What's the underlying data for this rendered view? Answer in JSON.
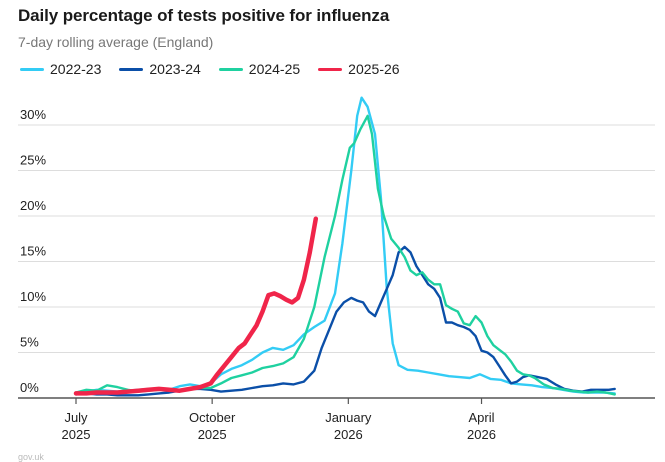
{
  "chart_data": {
    "type": "line",
    "title": "Daily percentage of tests positive for influenza",
    "subtitle": "7-day rolling average (England)",
    "xlabel": "",
    "ylabel": "",
    "x_unit": "days since 1 July",
    "x_ticks": [
      {
        "day": 0,
        "label1": "July",
        "label2": "2025"
      },
      {
        "day": 92,
        "label1": "October",
        "label2": "2025"
      },
      {
        "day": 184,
        "label1": "January",
        "label2": "2026"
      },
      {
        "day": 274,
        "label1": "April",
        "label2": "2026"
      }
    ],
    "xlim": [
      -40,
      391
    ],
    "ylim": [
      0,
      35
    ],
    "y_ticks": [
      {
        "value": 0,
        "label": "0%"
      },
      {
        "value": 5,
        "label": "5%"
      },
      {
        "value": 10,
        "label": "10%"
      },
      {
        "value": 15,
        "label": "15%"
      },
      {
        "value": 20,
        "label": "20%"
      },
      {
        "value": 25,
        "label": "25%"
      },
      {
        "value": 30,
        "label": "30%"
      }
    ],
    "grid": true,
    "legend_position": "top-left",
    "series": [
      {
        "name": "2022-23",
        "color": "#33ccf5",
        "points": [
          [
            0,
            0.5
          ],
          [
            7,
            0.7
          ],
          [
            14,
            0.9
          ],
          [
            21,
            0.8
          ],
          [
            28,
            0.7
          ],
          [
            35,
            0.8
          ],
          [
            42,
            0.9
          ],
          [
            49,
            1.0
          ],
          [
            56,
            1.0
          ],
          [
            63,
            0.9
          ],
          [
            70,
            1.3
          ],
          [
            77,
            1.5
          ],
          [
            84,
            1.3
          ],
          [
            91,
            1.6
          ],
          [
            98,
            2.6
          ],
          [
            105,
            3.2
          ],
          [
            112,
            3.6
          ],
          [
            119,
            4.2
          ],
          [
            126,
            5.0
          ],
          [
            133,
            5.5
          ],
          [
            140,
            5.3
          ],
          [
            147,
            5.8
          ],
          [
            154,
            7.0
          ],
          [
            161,
            7.8
          ],
          [
            168,
            8.5
          ],
          [
            175,
            11.5
          ],
          [
            180,
            17
          ],
          [
            186,
            25
          ],
          [
            190,
            31
          ],
          [
            193,
            33
          ],
          [
            197,
            32
          ],
          [
            202,
            29
          ],
          [
            206,
            22
          ],
          [
            210,
            12
          ],
          [
            214,
            6
          ],
          [
            218,
            3.6
          ],
          [
            224,
            3.1
          ],
          [
            231,
            3.0
          ],
          [
            238,
            2.8
          ],
          [
            245,
            2.6
          ],
          [
            252,
            2.4
          ],
          [
            259,
            2.3
          ],
          [
            266,
            2.2
          ],
          [
            273,
            2.6
          ],
          [
            280,
            2.1
          ],
          [
            287,
            2.0
          ],
          [
            294,
            1.6
          ],
          [
            301,
            1.5
          ],
          [
            308,
            1.4
          ],
          [
            315,
            1.2
          ],
          [
            322,
            1.1
          ],
          [
            329,
            0.9
          ],
          [
            336,
            0.7
          ],
          [
            343,
            0.6
          ],
          [
            350,
            0.6
          ],
          [
            357,
            0.6
          ],
          [
            364,
            0.5
          ]
        ]
      },
      {
        "name": "2023-24",
        "color": "#0b4fa8",
        "points": [
          [
            0,
            0.4
          ],
          [
            7,
            0.5
          ],
          [
            14,
            0.4
          ],
          [
            21,
            0.4
          ],
          [
            28,
            0.3
          ],
          [
            35,
            0.3
          ],
          [
            42,
            0.3
          ],
          [
            49,
            0.4
          ],
          [
            56,
            0.5
          ],
          [
            63,
            0.6
          ],
          [
            70,
            0.8
          ],
          [
            77,
            1.0
          ],
          [
            84,
            1.0
          ],
          [
            91,
            0.9
          ],
          [
            98,
            0.7
          ],
          [
            105,
            0.8
          ],
          [
            112,
            0.9
          ],
          [
            119,
            1.1
          ],
          [
            126,
            1.3
          ],
          [
            133,
            1.4
          ],
          [
            140,
            1.6
          ],
          [
            147,
            1.5
          ],
          [
            154,
            1.8
          ],
          [
            161,
            3.0
          ],
          [
            166,
            5.5
          ],
          [
            171,
            7.5
          ],
          [
            176,
            9.5
          ],
          [
            181,
            10.5
          ],
          [
            186,
            11.0
          ],
          [
            190,
            10.7
          ],
          [
            194,
            10.5
          ],
          [
            198,
            9.5
          ],
          [
            202,
            9.0
          ],
          [
            206,
            10.5
          ],
          [
            210,
            12
          ],
          [
            214,
            13.5
          ],
          [
            218,
            16.0
          ],
          [
            222,
            16.6
          ],
          [
            226,
            16.0
          ],
          [
            230,
            14.5
          ],
          [
            234,
            13.5
          ],
          [
            238,
            12.5
          ],
          [
            242,
            12.0
          ],
          [
            246,
            11.0
          ],
          [
            250,
            8.3
          ],
          [
            254,
            8.3
          ],
          [
            258,
            8.0
          ],
          [
            262,
            7.8
          ],
          [
            266,
            7.5
          ],
          [
            270,
            6.8
          ],
          [
            274,
            5.2
          ],
          [
            278,
            5.0
          ],
          [
            282,
            4.5
          ],
          [
            286,
            3.5
          ],
          [
            290,
            2.5
          ],
          [
            294,
            1.6
          ],
          [
            298,
            1.8
          ],
          [
            302,
            2.3
          ],
          [
            306,
            2.5
          ],
          [
            312,
            2.3
          ],
          [
            318,
            2.1
          ],
          [
            324,
            1.5
          ],
          [
            330,
            1.0
          ],
          [
            336,
            0.8
          ],
          [
            342,
            0.7
          ],
          [
            348,
            0.9
          ],
          [
            354,
            0.9
          ],
          [
            360,
            0.9
          ],
          [
            364,
            1.0
          ]
        ]
      },
      {
        "name": "2024-25",
        "color": "#1fd1a0",
        "points": [
          [
            0,
            0.6
          ],
          [
            7,
            0.9
          ],
          [
            14,
            0.8
          ],
          [
            21,
            1.4
          ],
          [
            28,
            1.2
          ],
          [
            35,
            0.9
          ],
          [
            42,
            0.7
          ],
          [
            49,
            0.8
          ],
          [
            56,
            0.9
          ],
          [
            63,
            0.9
          ],
          [
            70,
            0.8
          ],
          [
            77,
            1.0
          ],
          [
            84,
            1.1
          ],
          [
            91,
            1.1
          ],
          [
            98,
            1.6
          ],
          [
            105,
            2.2
          ],
          [
            112,
            2.5
          ],
          [
            119,
            2.8
          ],
          [
            126,
            3.3
          ],
          [
            133,
            3.5
          ],
          [
            140,
            3.8
          ],
          [
            147,
            4.5
          ],
          [
            154,
            6.5
          ],
          [
            161,
            10.0
          ],
          [
            168,
            15.5
          ],
          [
            175,
            20.0
          ],
          [
            180,
            24.0
          ],
          [
            185,
            27.5
          ],
          [
            188,
            28.0
          ],
          [
            192,
            29.5
          ],
          [
            197,
            31.0
          ],
          [
            200,
            29
          ],
          [
            204,
            23
          ],
          [
            208,
            20
          ],
          [
            213,
            17.5
          ],
          [
            218,
            16.5
          ],
          [
            222,
            15.5
          ],
          [
            226,
            14.0
          ],
          [
            230,
            13.5
          ],
          [
            234,
            13.8
          ],
          [
            238,
            13.0
          ],
          [
            242,
            12.5
          ],
          [
            246,
            12.5
          ],
          [
            250,
            10.2
          ],
          [
            254,
            9.8
          ],
          [
            258,
            9.5
          ],
          [
            262,
            8.2
          ],
          [
            266,
            8.0
          ],
          [
            270,
            9.0
          ],
          [
            274,
            8.3
          ],
          [
            278,
            6.8
          ],
          [
            282,
            5.8
          ],
          [
            286,
            5.3
          ],
          [
            290,
            4.8
          ],
          [
            294,
            4.0
          ],
          [
            298,
            3.0
          ],
          [
            302,
            2.6
          ],
          [
            306,
            2.5
          ],
          [
            310,
            2.2
          ],
          [
            316,
            1.5
          ],
          [
            322,
            1.1
          ],
          [
            328,
            1.0
          ],
          [
            334,
            0.8
          ],
          [
            340,
            0.7
          ],
          [
            346,
            0.6
          ],
          [
            352,
            0.7
          ],
          [
            358,
            0.6
          ],
          [
            364,
            0.4
          ]
        ]
      },
      {
        "name": "2025-26",
        "color": "#f0254a",
        "points": [
          [
            0,
            0.5
          ],
          [
            7,
            0.5
          ],
          [
            14,
            0.6
          ],
          [
            21,
            0.6
          ],
          [
            28,
            0.6
          ],
          [
            35,
            0.7
          ],
          [
            42,
            0.8
          ],
          [
            49,
            0.9
          ],
          [
            56,
            1.0
          ],
          [
            63,
            0.9
          ],
          [
            70,
            0.8
          ],
          [
            77,
            1.0
          ],
          [
            84,
            1.2
          ],
          [
            91,
            1.6
          ],
          [
            95,
            2.5
          ],
          [
            100,
            3.5
          ],
          [
            105,
            4.5
          ],
          [
            110,
            5.5
          ],
          [
            114,
            6.0
          ],
          [
            118,
            7.0
          ],
          [
            122,
            8.0
          ],
          [
            126,
            9.5
          ],
          [
            130,
            11.3
          ],
          [
            134,
            11.5
          ],
          [
            138,
            11.2
          ],
          [
            142,
            10.8
          ],
          [
            146,
            10.5
          ],
          [
            150,
            11.0
          ],
          [
            154,
            13.0
          ],
          [
            158,
            16.0
          ],
          [
            162,
            19.7
          ]
        ]
      }
    ]
  },
  "legend": [
    {
      "label": "2022-23",
      "color": "#33ccf5"
    },
    {
      "label": "2023-24",
      "color": "#0b4fa8"
    },
    {
      "label": "2024-25",
      "color": "#1fd1a0"
    },
    {
      "label": "2025-26",
      "color": "#f0254a"
    }
  ],
  "source": "gov.uk"
}
